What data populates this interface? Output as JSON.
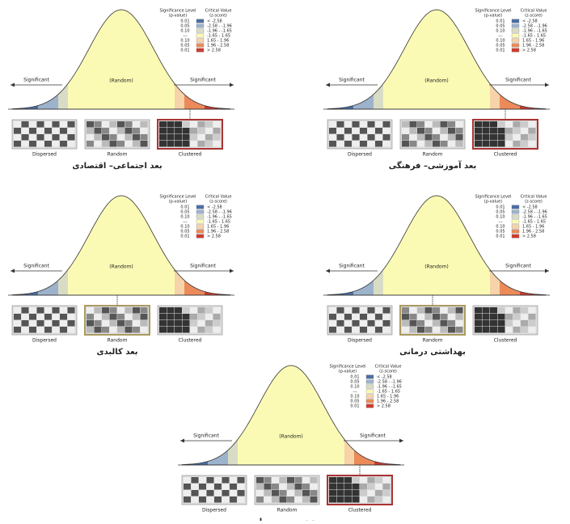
{
  "legend": {
    "title_left": "Significance Level",
    "sub_left": "(p-value)",
    "title_right": "Critical Value",
    "sub_right": "(z-score)",
    "rows": [
      {
        "p": "0.01",
        "z": "< -2.58",
        "color": "#4a6fa5"
      },
      {
        "p": "0.05",
        "z": "-2.58 - -1.96",
        "color": "#9db3cc"
      },
      {
        "p": "0.10",
        "z": "-1.96 - -1.65",
        "color": "#d9dcc4"
      },
      {
        "p": "---",
        "z": "-1.65 - 1.65",
        "color": "#fafab4"
      },
      {
        "p": "0.10",
        "z": "1.65 - 1.96",
        "color": "#f6d3a8"
      },
      {
        "p": "0.05",
        "z": "1.96 - 2.58",
        "color": "#ec8a5a"
      },
      {
        "p": "0.01",
        "z": "> 2.58",
        "color": "#cf3b2e"
      }
    ]
  },
  "labels": {
    "left": "Significant",
    "center": "(Random)",
    "right": "Significant",
    "thumbs": [
      "Dispersed",
      "Random",
      "Clustered"
    ]
  },
  "panels": [
    {
      "caption": "بعد اجتماعی– اقتصادی",
      "highlight": 2
    },
    {
      "caption": "بعد آموزشی– فرهنگی",
      "highlight": 2
    },
    {
      "caption": "بعد کالبدی",
      "highlight": 1
    },
    {
      "caption": "بهداشتی درمانی",
      "highlight": 1
    },
    {
      "caption": "بعد زیست محیطی",
      "highlight": 2
    }
  ]
}
